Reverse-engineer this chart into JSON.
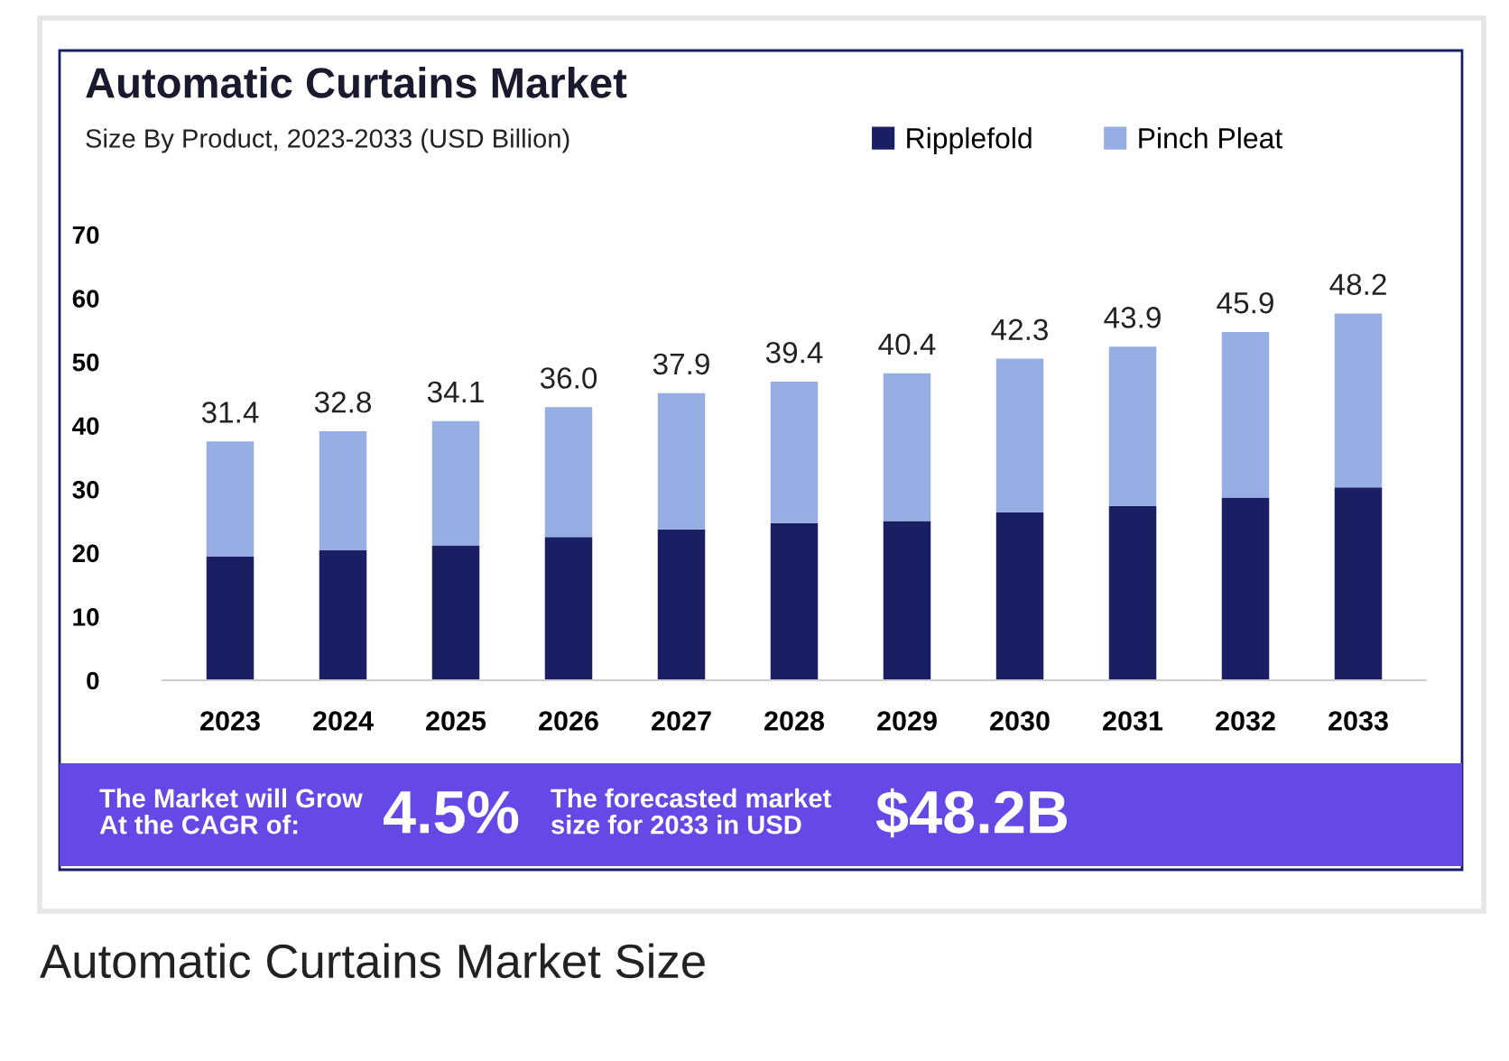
{
  "chart_data": {
    "type": "bar",
    "title": "Automatic Curtains Market",
    "subtitle": "Size By Product, 2023-2033 (USD Billion)",
    "categories": [
      "2023",
      "2024",
      "2025",
      "2026",
      "2027",
      "2028",
      "2029",
      "2030",
      "2031",
      "2032",
      "2033"
    ],
    "stacked": true,
    "series": [
      {
        "name": "Ripplefold",
        "color": "#1a1f63",
        "values": [
          19.4,
          20.4,
          21.2,
          22.5,
          23.7,
          24.7,
          25.0,
          26.4,
          27.4,
          28.7,
          30.3
        ]
      },
      {
        "name": "Pinch Pleat",
        "color": "#97aee4",
        "values": [
          18.1,
          18.7,
          19.5,
          20.4,
          21.4,
          22.2,
          23.2,
          24.1,
          25.0,
          26.0,
          27.3
        ]
      }
    ],
    "ylim": [
      0,
      70
    ],
    "yticks": [
      0,
      10,
      20,
      30,
      40,
      50,
      60,
      70
    ],
    "legend": "top right",
    "annotations": [
      {
        "text": "31.4",
        "x": "2023",
        "y": 37.5
      },
      {
        "text": "32.8",
        "x": "2024",
        "y": 39.1
      },
      {
        "text": "34.1",
        "x": "2025",
        "y": 40.7
      },
      {
        "text": "36.0",
        "x": "2026",
        "y": 42.9
      },
      {
        "text": "37.9",
        "x": "2027",
        "y": 45.1
      },
      {
        "text": "39.4",
        "x": "2028",
        "y": 46.9
      },
      {
        "text": "40.4",
        "x": "2029",
        "y": 48.2
      },
      {
        "text": "42.3",
        "x": "2030",
        "y": 50.5
      },
      {
        "text": "43.9",
        "x": "2031",
        "y": 52.4
      },
      {
        "text": "45.9",
        "x": "2032",
        "y": 54.7
      },
      {
        "text": "48.2",
        "x": "2033",
        "y": 57.6
      },
      "The Market will Grow\nAt the CAGR of:",
      "4.5%",
      "The forecasted market\nsize for 2033 in USD",
      "$48.2B",
      "Automatic Curtains Market Size"
    ]
  }
}
